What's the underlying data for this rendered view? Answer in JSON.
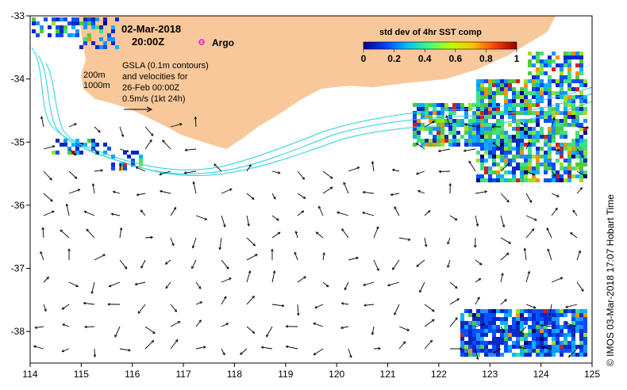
{
  "date": "02-Mar-2018",
  "time": "20:00Z",
  "argo_label": "Argo",
  "gsla_text": [
    "GSLA (0.1m contours)",
    "and velocities for",
    "26-Feb 00:00Z",
    "0.5m/s (1kt 24h)"
  ],
  "depth_labels": [
    "200m",
    "1000m"
  ],
  "colorbar": {
    "title": "std dev of 4hr SST comp",
    "ticks": [
      "0",
      "0.2",
      "0.4",
      "0.6",
      "0.8",
      "1"
    ],
    "colors": [
      "#00008f",
      "#0040ff",
      "#00c0ff",
      "#40ff80",
      "#c0ff00",
      "#ffc000",
      "#ff4000",
      "#900000"
    ]
  },
  "credit": "© IMOS 03-Mar-2018 17:07 Hobart Time",
  "axes": {
    "lon_range": [
      114,
      125
    ],
    "lat_range": [
      -38.5,
      -33
    ],
    "lon_ticks": [
      "114",
      "115",
      "116",
      "117",
      "118",
      "119",
      "120",
      "121",
      "122",
      "123",
      "124",
      "125"
    ],
    "lat_ticks": [
      "-33",
      "-34",
      "-35",
      "-36",
      "-37",
      "-38"
    ]
  },
  "colors": {
    "land": "#f9c89a",
    "contour": "#22d0e0",
    "argo": "#e020e0"
  },
  "argo_location": {
    "lon": 117.35,
    "lat": -33.4
  }
}
